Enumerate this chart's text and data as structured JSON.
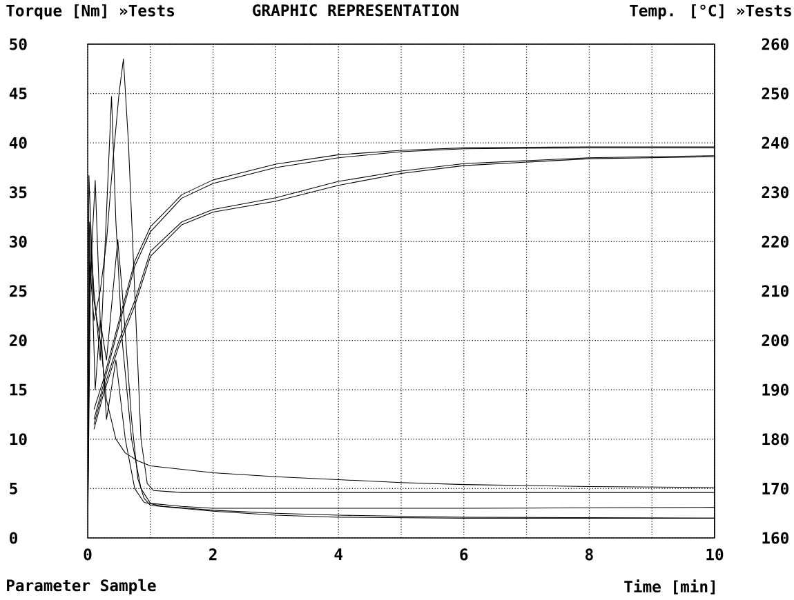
{
  "chart_data": {
    "type": "line",
    "title": "GRAPHIC REPRESENTATION",
    "ylabel": "Torque [Nm] »Tests",
    "y2label": "Temp. [°C] »Tests",
    "xlabel": "Time [min]",
    "annotations": [
      "Parameter Sample"
    ],
    "xlim": [
      0,
      10
    ],
    "xticks": [
      0,
      {
        "value": 1,
        "label": null
      },
      2,
      {
        "value": 3,
        "label": null
      },
      4,
      {
        "value": 5,
        "label": null
      },
      6,
      {
        "value": 7,
        "label": null
      },
      8,
      {
        "value": 9,
        "label": null
      },
      10
    ],
    "ylim": [
      0,
      50
    ],
    "yticks": [
      0,
      5,
      10,
      15,
      20,
      25,
      30,
      35,
      40,
      45,
      50
    ],
    "y2lim": [
      160,
      260
    ],
    "y2ticks": [
      160,
      170,
      180,
      190,
      200,
      210,
      220,
      230,
      240,
      250,
      260
    ],
    "grid": true,
    "series": [
      {
        "color": "#000000",
        "x": [
          0,
          0.02,
          0.06,
          0.1,
          0.2,
          0.3,
          0.45,
          0.6,
          0.8,
          1,
          2,
          3,
          4,
          5,
          6,
          7,
          8,
          10
        ],
        "values": [
          0,
          36.7,
          30,
          24,
          20,
          14,
          10,
          8.6,
          7.8,
          7.3,
          6.6,
          6.2,
          5.9,
          5.6,
          5.4,
          5.3,
          5.2,
          5.1
        ]
      },
      {
        "color": "#000000",
        "x": [
          0,
          0.03,
          0.1,
          0.2,
          0.3,
          0.4,
          0.5,
          0.57,
          0.65,
          0.75,
          0.85,
          0.95,
          1.05,
          1.5,
          2,
          4,
          6,
          8,
          10
        ],
        "values": [
          0,
          28,
          22,
          25,
          30,
          38,
          45,
          48.5,
          40,
          25,
          10,
          5.5,
          4.8,
          4.6,
          4.6,
          4.6,
          4.6,
          4.6,
          4.6
        ]
      },
      {
        "color": "#000000",
        "x": [
          0,
          0.03,
          0.1,
          0.2,
          0.28,
          0.38,
          0.45,
          0.55,
          0.7,
          0.85,
          1,
          1.5,
          2,
          4,
          6,
          8,
          10
        ],
        "values": [
          0,
          32,
          25,
          18,
          30,
          44.7,
          32,
          20,
          10,
          5,
          3.5,
          3.2,
          3.0,
          3.0,
          3.0,
          3.05,
          3.1
        ]
      },
      {
        "color": "#000000",
        "x": [
          0,
          0.03,
          0.12,
          0.2,
          0.3,
          0.48,
          0.55,
          0.7,
          0.8,
          0.9,
          1,
          1.5,
          2,
          3,
          4,
          6,
          8,
          10
        ],
        "values": [
          0,
          25,
          36.2,
          22,
          18,
          30.2,
          25,
          12,
          6,
          4,
          3.3,
          3,
          2.7,
          2.3,
          2.1,
          2.0,
          2.0,
          2.0
        ]
      },
      {
        "color": "#000000",
        "x": [
          0,
          0.05,
          0.12,
          0.2,
          0.3,
          0.45,
          0.6,
          0.75,
          0.9,
          1.2,
          2,
          3,
          4,
          6,
          10
        ],
        "values": [
          0,
          30,
          15,
          22,
          12,
          18,
          10,
          5,
          3.6,
          3.2,
          2.8,
          2.5,
          2.3,
          2.1,
          2.0
        ]
      },
      {
        "axis": "y2",
        "color": "#000000",
        "x": [
          0.1,
          0.25,
          0.5,
          0.75,
          1,
          1.5,
          2,
          3,
          4,
          5,
          6,
          8,
          10
        ],
        "values": [
          186,
          192,
          204,
          216,
          223,
          229.5,
          232.5,
          235.7,
          237.6,
          238.5,
          239,
          239.2,
          239.2
        ]
      },
      {
        "axis": "y2",
        "color": "#000000",
        "x": [
          0.1,
          0.25,
          0.5,
          0.75,
          1,
          1.5,
          2,
          3,
          4,
          5,
          6,
          8,
          10
        ],
        "values": [
          184,
          191,
          203,
          215,
          222,
          228.8,
          231.8,
          235,
          237,
          238.2,
          238.8,
          239,
          239
        ]
      },
      {
        "axis": "y2",
        "color": "#000000",
        "x": [
          0.1,
          0.25,
          0.5,
          0.75,
          1,
          1.5,
          2,
          3,
          4,
          5,
          6,
          8,
          10
        ],
        "values": [
          183,
          190,
          200,
          208,
          218,
          224,
          226.5,
          228.9,
          232.2,
          234.3,
          235.8,
          237,
          237.4
        ]
      },
      {
        "axis": "y2",
        "color": "#000000",
        "x": [
          0.1,
          0.25,
          0.5,
          0.75,
          1,
          1.5,
          2,
          3,
          4,
          5,
          6,
          8,
          10
        ],
        "values": [
          182,
          189,
          199,
          207,
          217,
          223.4,
          226,
          228.2,
          231.4,
          233.8,
          235.4,
          236.8,
          237.2
        ]
      }
    ]
  }
}
